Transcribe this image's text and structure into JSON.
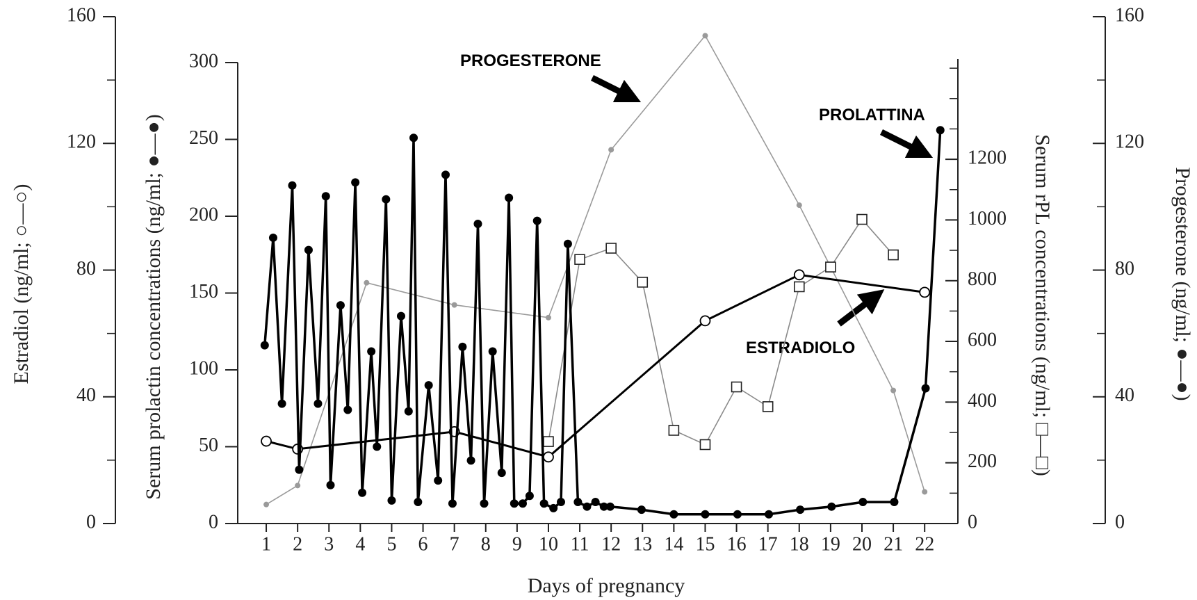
{
  "chart_data": {
    "type": "line",
    "x_label": "Days of pregnancy",
    "xlim": [
      0.09,
      23.06
    ],
    "xticks": [
      1,
      2,
      3,
      4,
      5,
      6,
      7,
      8,
      9,
      10,
      11,
      12,
      13,
      14,
      15,
      16,
      17,
      18,
      19,
      20,
      21,
      22
    ],
    "y_axes": [
      {
        "label": "Estradiol (ng/ml; ○—○)",
        "lim": [
          0,
          160
        ],
        "ticks": [
          0,
          40,
          80,
          120,
          160
        ],
        "minor_ticks": [
          20,
          60,
          100,
          140
        ]
      },
      {
        "label": "Serum prolactin concentrations (ng/ml; ●—●)",
        "lim": [
          0,
          300
        ],
        "ticks": [
          0,
          50,
          100,
          150,
          200,
          250,
          300
        ],
        "minor_ticks": []
      },
      {
        "label": "Serum rPL concentrations (ng/ml; □—□)",
        "lim": [
          0,
          1530
        ],
        "ticks": [
          0,
          200,
          400,
          600,
          800,
          1000,
          1200
        ],
        "minor_ticks": [
          100,
          300,
          500,
          700,
          900,
          1100,
          1300,
          1400,
          1500
        ]
      },
      {
        "label": "Progesterone (ng/ml; ●—●)",
        "lim": [
          0,
          160
        ],
        "ticks": [
          0,
          40,
          80,
          120,
          160
        ],
        "minor_ticks": [
          20,
          60,
          100,
          140
        ]
      }
    ],
    "series": [
      {
        "name": "PROGESTERONE",
        "axis": 3,
        "color": "#9a9a9a",
        "marker": "dot",
        "x": [
          1,
          2,
          4.2,
          7,
          10,
          12,
          15,
          18,
          21,
          22
        ],
        "values": [
          6,
          12,
          76,
          69,
          65,
          118,
          154,
          100.5,
          42,
          10
        ]
      },
      {
        "axis": 2,
        "color": "#8a8a8a",
        "marker": "square",
        "x": [
          10,
          11,
          12,
          13,
          14,
          15,
          16,
          17,
          18,
          19,
          20,
          21
        ],
        "values": [
          270,
          870,
          907,
          795,
          307,
          260,
          450,
          385,
          780,
          845,
          1002,
          885
        ]
      },
      {
        "name": "ESTRADIOLO",
        "axis": 0,
        "color": "#000000",
        "marker": "circle-open",
        "x": [
          1,
          2,
          7,
          10,
          15,
          18,
          22
        ],
        "values": [
          26,
          23.5,
          29,
          21,
          64,
          78.5,
          73
        ]
      },
      {
        "name": "PROLATTINA",
        "axis": 1,
        "color": "#000000",
        "marker": "circle-filled",
        "x": [
          0.95,
          1.22,
          1.5,
          1.83,
          2.05,
          2.35,
          2.65,
          2.9,
          3.05,
          3.37,
          3.6,
          3.84,
          4.06,
          4.35,
          4.53,
          4.82,
          5.0,
          5.3,
          5.54,
          5.7,
          5.84,
          6.18,
          6.48,
          6.72,
          6.94,
          7.26,
          7.53,
          7.75,
          7.95,
          8.22,
          8.51,
          8.74,
          8.91,
          9.18,
          9.4,
          9.64,
          9.86,
          10.16,
          10.4,
          10.62,
          10.94,
          11.23,
          11.5,
          11.77,
          11.97,
          12.97,
          14.0,
          15.0,
          16.03,
          17.03,
          18.03,
          19.03,
          20.03,
          21.03,
          22.03,
          22.5
        ],
        "values": [
          116,
          186,
          78,
          220,
          35,
          178,
          78,
          213,
          25,
          142,
          74,
          222,
          20,
          112,
          50,
          211,
          15,
          135,
          73,
          251,
          14,
          90,
          28,
          227,
          13,
          115,
          41,
          195,
          13,
          112,
          33,
          212,
          13,
          13,
          18,
          197,
          13,
          10,
          14,
          182,
          14,
          11,
          14,
          11,
          11,
          9,
          6,
          6,
          6,
          6,
          9,
          11,
          14,
          14,
          88,
          256
        ]
      }
    ]
  }
}
